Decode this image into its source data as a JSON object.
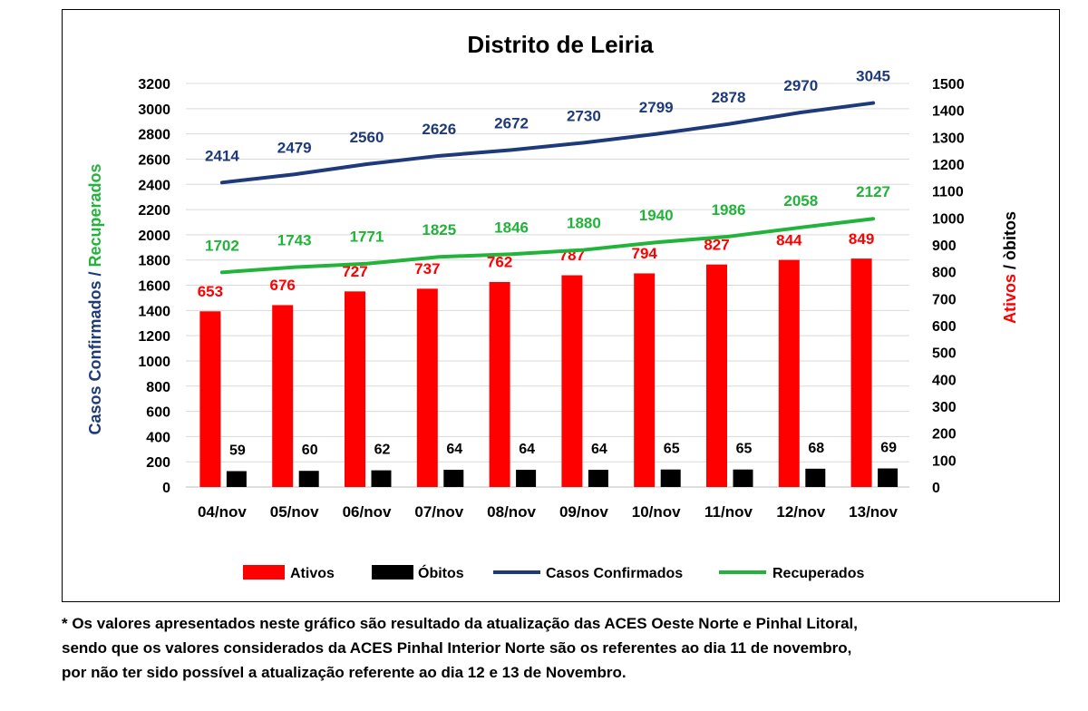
{
  "chart_data": {
    "type": "bar",
    "title": "Distrito de Leiria",
    "categories": [
      "04/nov",
      "05/nov",
      "06/nov",
      "07/nov",
      "08/nov",
      "09/nov",
      "10/nov",
      "11/nov",
      "12/nov",
      "13/nov"
    ],
    "series": [
      {
        "name": "Ativos",
        "type": "bar",
        "axis": "right",
        "color": "#ff0000",
        "values": [
          653,
          676,
          727,
          737,
          762,
          787,
          794,
          827,
          844,
          849
        ]
      },
      {
        "name": "Óbitos",
        "type": "bar",
        "axis": "right",
        "color": "#000000",
        "values": [
          59,
          60,
          62,
          64,
          64,
          64,
          65,
          65,
          68,
          69
        ]
      },
      {
        "name": "Casos Confirmados",
        "type": "line",
        "axis": "left",
        "color": "#1f3a7a",
        "values": [
          2414,
          2479,
          2560,
          2626,
          2672,
          2730,
          2799,
          2878,
          2970,
          3045
        ]
      },
      {
        "name": "Recuperados",
        "type": "line",
        "axis": "left",
        "color": "#22b33a",
        "values": [
          1702,
          1743,
          1771,
          1825,
          1846,
          1880,
          1940,
          1986,
          2058,
          2127
        ]
      }
    ],
    "ylabel_left_part1": "Casos Confirmados /",
    "ylabel_left_part2": "Recuperados",
    "ylabel_right_part1": "Ativos",
    "ylabel_right_part2": "/ òbitos",
    "ylim_left": [
      0,
      3200
    ],
    "yticks_left": [
      0,
      200,
      400,
      600,
      800,
      1000,
      1200,
      1400,
      1600,
      1800,
      2000,
      2200,
      2400,
      2600,
      2800,
      3000,
      3200
    ],
    "ylim_right": [
      0,
      1500
    ],
    "yticks_right": [
      0,
      100,
      200,
      300,
      400,
      500,
      600,
      700,
      800,
      900,
      1000,
      1100,
      1200,
      1300,
      1400,
      1500
    ],
    "grid": "horizontal",
    "legend_position": "bottom"
  },
  "footnote": {
    "line1": "* Os valores apresentados neste gráfico são resultado da atualização das ACES Oeste Norte e Pinhal Litoral,",
    "line2": "sendo que os valores considerados da ACES Pinhal Interior Norte são os referentes ao dia 11 de novembro,",
    "line3": "por não ter sido possível a atualização referente ao dia 12 e 13 de Novembro."
  }
}
